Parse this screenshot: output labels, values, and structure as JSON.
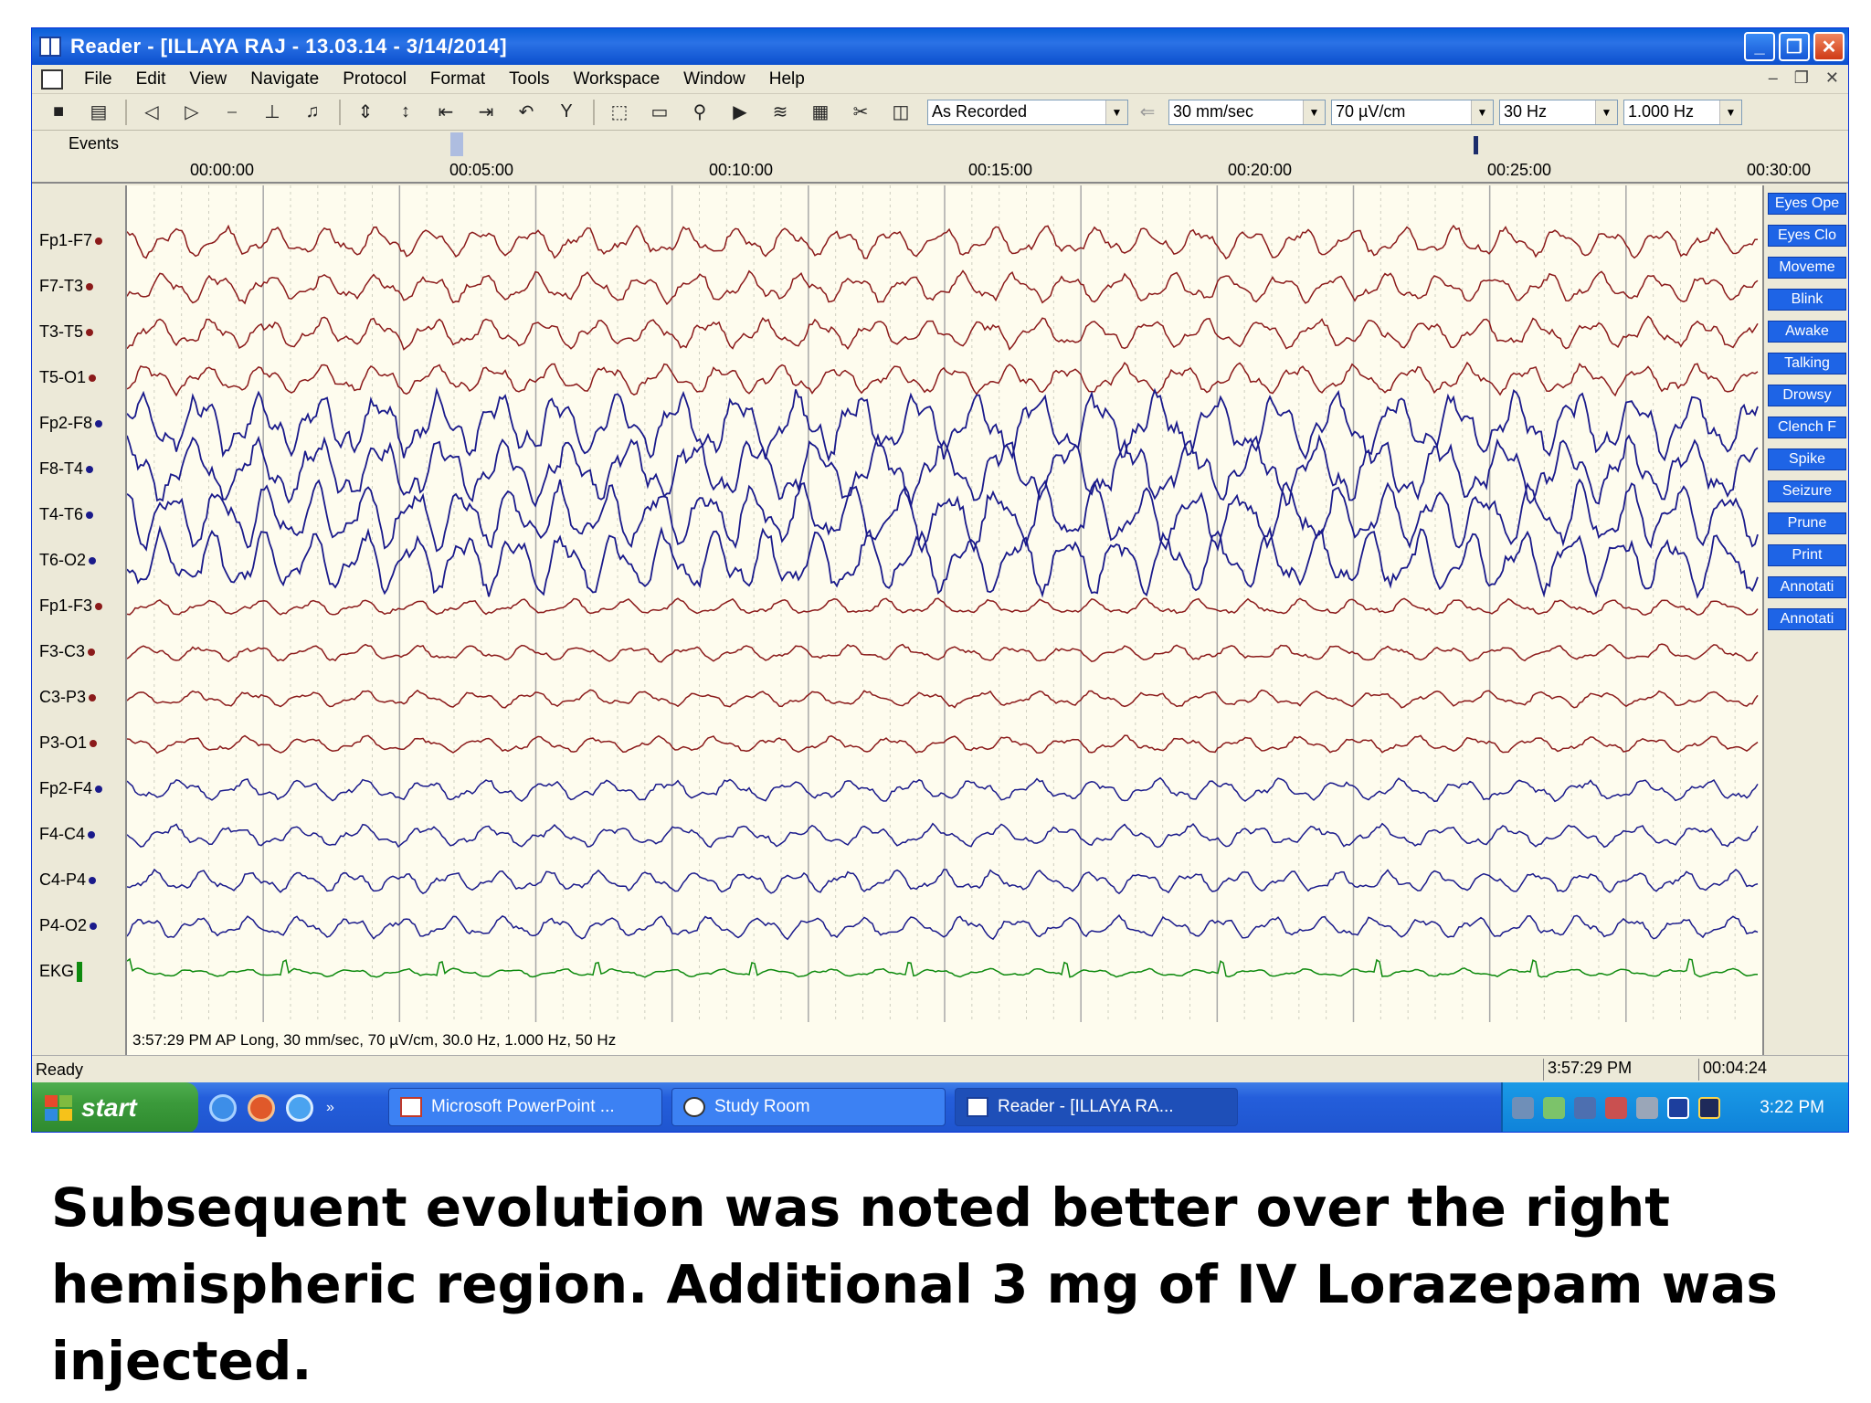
{
  "window": {
    "title": "Reader - [ILLAYA RAJ  - 13.03.14 - 3/14/2014]",
    "controls": [
      "_",
      "❐",
      "✕"
    ]
  },
  "menu": [
    "File",
    "Edit",
    "View",
    "Navigate",
    "Protocol",
    "Format",
    "Tools",
    "Workspace",
    "Window",
    "Help"
  ],
  "toolbar": {
    "montage": "As Recorded",
    "speed": "30 mm/sec",
    "sensitivity": "70 µV/cm",
    "high_filter": "30 Hz",
    "low_filter": "1.000 Hz"
  },
  "events_label": "Events",
  "time_ticks": [
    "00:00:00",
    "00:05:00",
    "00:10:00",
    "00:15:00",
    "00:20:00",
    "00:25:00",
    "00:30:00"
  ],
  "channels": [
    {
      "label": "Fp1-F7",
      "color": "#8b1a1a"
    },
    {
      "label": "F7-T3",
      "color": "#8b1a1a"
    },
    {
      "label": "T3-T5",
      "color": "#8b1a1a"
    },
    {
      "label": "T5-O1",
      "color": "#8b1a1a"
    },
    {
      "label": "Fp2-F8",
      "color": "#1a1a8b"
    },
    {
      "label": "F8-T4",
      "color": "#1a1a8b"
    },
    {
      "label": "T4-T6",
      "color": "#1a1a8b"
    },
    {
      "label": "T6-O2",
      "color": "#1a1a8b"
    },
    {
      "label": "Fp1-F3",
      "color": "#8b1a1a"
    },
    {
      "label": "F3-C3",
      "color": "#8b1a1a"
    },
    {
      "label": "C3-P3",
      "color": "#8b1a1a"
    },
    {
      "label": "P3-O1",
      "color": "#8b1a1a"
    },
    {
      "label": "Fp2-F4",
      "color": "#1a1a8b"
    },
    {
      "label": "F4-C4",
      "color": "#1a1a8b"
    },
    {
      "label": "C4-P4",
      "color": "#1a1a8b"
    },
    {
      "label": "P4-O2",
      "color": "#1a1a8b"
    },
    {
      "label": "EKG",
      "color": "#0e8a0e"
    }
  ],
  "annotations": [
    "Eyes Ope",
    "Eyes Clo",
    "Moveme",
    "Blink",
    "Awake",
    "Talking",
    "Drowsy",
    "Clench F",
    "Spike",
    "Seizure",
    "Prune",
    "Print",
    "Annotati",
    "Annotati"
  ],
  "recording_info": "3:57:29 PM AP Long, 30 mm/sec, 70 µV/cm, 30.0 Hz, 1.000 Hz, 50 Hz",
  "status": {
    "text": "Ready",
    "clock_time": "3:57:29 PM",
    "elapsed": "00:04:24"
  },
  "taskbar": {
    "start_label": "start",
    "tasks": [
      "Microsoft PowerPoint ...",
      "Study Room",
      "Reader - [ILLAYA RA..."
    ],
    "tray_time": "3:22 PM"
  },
  "caption": "Subsequent evolution was noted better over the right hemispheric region. Additional 3 mg of IV Lorazepam was injected."
}
